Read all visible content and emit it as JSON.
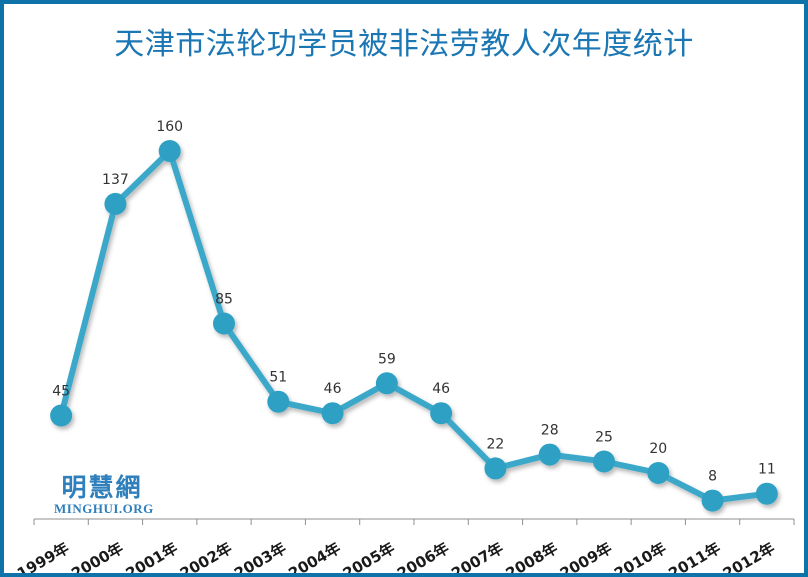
{
  "frame": {
    "border_color": "#0e73a9",
    "background": "#ffffff"
  },
  "title": {
    "text": "天津市法轮功学员被非法劳教人次年度统计",
    "color": "#1b76b4"
  },
  "watermark": {
    "cjk": "明慧網",
    "latin": "MINGHUI.ORG",
    "color": "#2e7fbc"
  },
  "chart_data": {
    "type": "line",
    "title": "天津市法轮功学员被非法劳教人次年度统计",
    "categories": [
      "1999年",
      "2000年",
      "2001年",
      "2002年",
      "2003年",
      "2004年",
      "2005年",
      "2006年",
      "2007年",
      "2008年",
      "2009年",
      "2010年",
      "2011年",
      "2012年"
    ],
    "values": [
      45,
      137,
      160,
      85,
      51,
      46,
      59,
      46,
      22,
      28,
      25,
      20,
      8,
      11
    ],
    "series_name": "被非法劳教人次",
    "xlabel": "",
    "ylabel": "",
    "ylim": [
      0,
      180
    ],
    "grid": false,
    "legend": false,
    "data_labels": true,
    "colors": {
      "line": "#3ba8ca",
      "marker": "#2fa0c4",
      "value_label": "#333333",
      "axis": "#8f8f8f",
      "tick_label": "#1a1a1a"
    }
  }
}
